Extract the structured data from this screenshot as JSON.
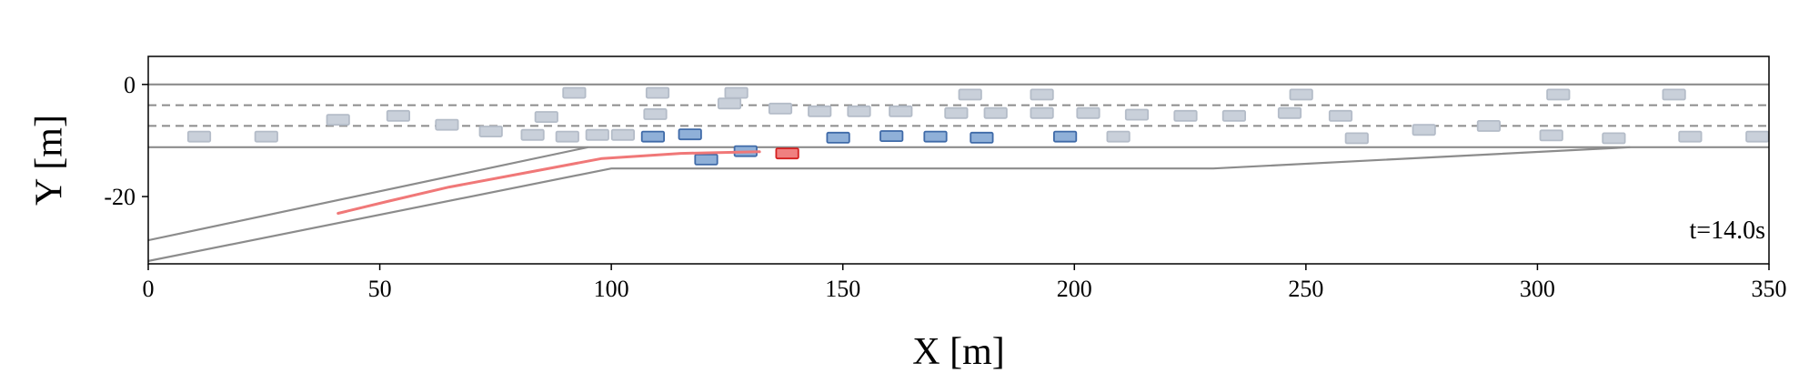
{
  "chart_data": {
    "type": "scatter",
    "title": "",
    "xlabel": "X [m]",
    "ylabel": "Y [m]",
    "xlim": [
      0,
      350
    ],
    "ylim": [
      -32,
      5
    ],
    "xticks": [
      0,
      50,
      100,
      150,
      200,
      250,
      300,
      350
    ],
    "xtick_labels": [
      "0",
      "50",
      "100",
      "150",
      "200",
      "250",
      "300",
      "350"
    ],
    "yticks": [
      0,
      -20
    ],
    "ytick_labels": [
      "0",
      "-20"
    ],
    "annotation": "t=14.0s",
    "grid": false,
    "colors": {
      "road": "#8c8c8c",
      "lane_marking": "#8c8c8c",
      "background_vehicle_fill": "#c9d0da",
      "background_vehicle_edge": "#b4bcc8",
      "nearby_vehicle_fill": "#8fb0d8",
      "nearby_vehicle_edge": "#3f6aa8",
      "ego_vehicle_fill": "#f08080",
      "ego_vehicle_edge": "#d42020",
      "ego_trajectory": "#f07878"
    },
    "road_edges": [
      [
        [
          0,
          0
        ],
        [
          350,
          0
        ]
      ],
      [
        [
          0,
          -11.2
        ],
        [
          95,
          -11.2
        ],
        [
          350,
          -11.2
        ]
      ],
      [
        [
          0,
          -27.8
        ],
        [
          95,
          -11.2
        ]
      ],
      [
        [
          0,
          -31.5
        ],
        [
          100,
          -15
        ],
        [
          230,
          -15
        ],
        [
          320,
          -11.2
        ]
      ]
    ],
    "lane_markings": [
      [
        [
          0,
          -3.7
        ],
        [
          350,
          -3.7
        ]
      ],
      [
        [
          0,
          -7.4
        ],
        [
          350,
          -7.4
        ]
      ]
    ],
    "ego_trajectory": [
      [
        41,
        -23
      ],
      [
        52,
        -20.8
      ],
      [
        65,
        -18.3
      ],
      [
        80,
        -16
      ],
      [
        98,
        -13.2
      ],
      [
        115,
        -12.3
      ],
      [
        132,
        -12
      ]
    ],
    "ego_vehicle": [
      {
        "x": 138,
        "y": -12.3
      }
    ],
    "nearby_vehicles": [
      {
        "x": 109,
        "y": -9.3
      },
      {
        "x": 117,
        "y": -8.9
      },
      {
        "x": 120.5,
        "y": -13.4
      },
      {
        "x": 129,
        "y": -11.9
      },
      {
        "x": 149,
        "y": -9.5
      },
      {
        "x": 160.5,
        "y": -9.2
      },
      {
        "x": 170,
        "y": -9.3
      },
      {
        "x": 180,
        "y": -9.5
      },
      {
        "x": 198,
        "y": -9.3
      }
    ],
    "background_vehicles": [
      {
        "x": 11,
        "y": -9.3
      },
      {
        "x": 25.5,
        "y": -9.3
      },
      {
        "x": 41,
        "y": -6.3
      },
      {
        "x": 54,
        "y": -5.6
      },
      {
        "x": 64.5,
        "y": -7.2
      },
      {
        "x": 74,
        "y": -8.4
      },
      {
        "x": 83,
        "y": -9.0
      },
      {
        "x": 86,
        "y": -5.8
      },
      {
        "x": 90.5,
        "y": -9.3
      },
      {
        "x": 92,
        "y": -1.5
      },
      {
        "x": 97,
        "y": -9.0
      },
      {
        "x": 102.5,
        "y": -9.0
      },
      {
        "x": 109.5,
        "y": -5.3
      },
      {
        "x": 110,
        "y": -1.5
      },
      {
        "x": 125.5,
        "y": -3.4
      },
      {
        "x": 127,
        "y": -1.5
      },
      {
        "x": 136.5,
        "y": -4.3
      },
      {
        "x": 145,
        "y": -4.8
      },
      {
        "x": 153.5,
        "y": -4.8
      },
      {
        "x": 162.5,
        "y": -4.8
      },
      {
        "x": 174.5,
        "y": -5.1
      },
      {
        "x": 177.5,
        "y": -1.8
      },
      {
        "x": 183,
        "y": -5.1
      },
      {
        "x": 193,
        "y": -5.1
      },
      {
        "x": 193,
        "y": -1.8
      },
      {
        "x": 203,
        "y": -5.1
      },
      {
        "x": 209.5,
        "y": -9.3
      },
      {
        "x": 213.5,
        "y": -5.4
      },
      {
        "x": 224,
        "y": -5.6
      },
      {
        "x": 234.5,
        "y": -5.6
      },
      {
        "x": 246.5,
        "y": -5.1
      },
      {
        "x": 249,
        "y": -1.8
      },
      {
        "x": 257.5,
        "y": -5.6
      },
      {
        "x": 261,
        "y": -9.6
      },
      {
        "x": 275.5,
        "y": -8.1
      },
      {
        "x": 289.5,
        "y": -7.4
      },
      {
        "x": 303,
        "y": -9.1
      },
      {
        "x": 304.5,
        "y": -1.8
      },
      {
        "x": 316.5,
        "y": -9.6
      },
      {
        "x": 329.5,
        "y": -1.8
      },
      {
        "x": 333,
        "y": -9.3
      },
      {
        "x": 347.5,
        "y": -9.3
      }
    ]
  }
}
